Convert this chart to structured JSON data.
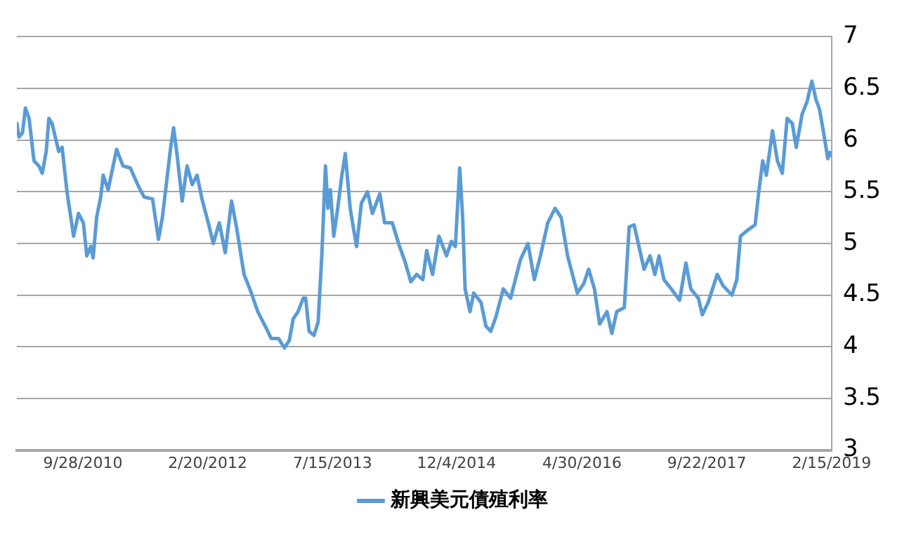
{
  "chart_data": {
    "type": "line",
    "legend": "bottom",
    "grid": "y",
    "marker": "none",
    "line_style": "solid",
    "xlim": [
      "2010-01-01",
      "2019-02-15"
    ],
    "xticks": [
      {
        "value": "2010-09-28",
        "label": "9/28/2010"
      },
      {
        "value": "2012-02-20",
        "label": "2/20/2012"
      },
      {
        "value": "2013-07-15",
        "label": "7/15/2013"
      },
      {
        "value": "2014-12-04",
        "label": "12/4/2014"
      },
      {
        "value": "2016-04-30",
        "label": "4/30/2016"
      },
      {
        "value": "2017-09-22",
        "label": "9/22/2017"
      },
      {
        "value": "2019-02-15",
        "label": "2/15/2019"
      }
    ],
    "ylim": [
      3,
      7
    ],
    "yticks": [
      3,
      3.5,
      4,
      4.5,
      5,
      5.5,
      6,
      6.5,
      7
    ],
    "x": [
      "2010-01-01",
      "2010-01-10",
      "2010-01-24",
      "2010-02-05",
      "2010-02-20",
      "2010-03-12",
      "2010-04-01",
      "2010-04-15",
      "2010-05-01",
      "2010-05-12",
      "2010-05-25",
      "2010-06-21",
      "2010-07-05",
      "2010-07-25",
      "2010-08-21",
      "2010-09-10",
      "2010-09-30",
      "2010-10-14",
      "2010-10-30",
      "2010-11-09",
      "2010-11-23",
      "2010-12-10",
      "2010-12-20",
      "2011-01-09",
      "2011-02-13",
      "2011-03-11",
      "2011-04-10",
      "2011-05-10",
      "2011-06-05",
      "2011-07-10",
      "2011-08-03",
      "2011-08-19",
      "2011-09-22",
      "2011-10-04",
      "2011-10-19",
      "2011-11-08",
      "2011-11-28",
      "2011-12-19",
      "2012-01-08",
      "2012-01-28",
      "2012-02-27",
      "2012-03-14",
      "2012-04-08",
      "2012-05-02",
      "2012-05-28",
      "2012-06-17",
      "2012-07-18",
      "2012-08-17",
      "2012-09-12",
      "2012-10-17",
      "2012-11-06",
      "2012-12-06",
      "2012-12-30",
      "2013-01-19",
      "2013-02-04",
      "2013-02-24",
      "2013-03-17",
      "2013-03-27",
      "2013-04-10",
      "2013-04-30",
      "2013-05-17",
      "2013-06-01",
      "2013-06-16",
      "2013-06-26",
      "2013-07-06",
      "2013-07-20",
      "2013-08-05",
      "2013-08-22",
      "2013-09-05",
      "2013-09-25",
      "2013-10-21",
      "2013-11-10",
      "2013-12-05",
      "2013-12-25",
      "2014-01-24",
      "2014-02-13",
      "2014-03-16",
      "2014-04-15",
      "2014-05-05",
      "2014-05-31",
      "2014-06-24",
      "2014-07-19",
      "2014-08-04",
      "2014-08-28",
      "2014-09-23",
      "2014-10-24",
      "2014-11-13",
      "2014-11-29",
      "2014-12-17",
      "2014-12-29",
      "2015-01-08",
      "2015-01-28",
      "2015-02-12",
      "2015-03-14",
      "2015-04-03",
      "2015-04-23",
      "2015-05-14",
      "2015-06-13",
      "2015-07-13",
      "2015-08-22",
      "2015-09-22",
      "2015-10-18",
      "2015-11-12",
      "2015-12-12",
      "2016-01-11",
      "2016-02-05",
      "2016-03-02",
      "2016-03-22",
      "2016-04-11",
      "2016-05-07",
      "2016-05-27",
      "2016-06-20",
      "2016-07-11",
      "2016-08-10",
      "2016-08-30",
      "2016-09-19",
      "2016-10-20",
      "2016-11-09",
      "2016-11-29",
      "2016-12-19",
      "2017-01-09",
      "2017-02-02",
      "2017-02-22",
      "2017-03-11",
      "2017-03-31",
      "2017-04-30",
      "2017-06-03",
      "2017-06-29",
      "2017-07-19",
      "2017-08-19",
      "2017-09-04",
      "2017-09-28",
      "2017-11-04",
      "2017-11-28",
      "2018-01-03",
      "2018-01-23",
      "2018-02-07",
      "2018-03-09",
      "2018-04-08",
      "2018-04-22",
      "2018-05-09",
      "2018-05-24",
      "2018-06-18",
      "2018-07-08",
      "2018-07-28",
      "2018-08-17",
      "2018-09-07",
      "2018-09-23",
      "2018-10-17",
      "2018-11-06",
      "2018-11-26",
      "2018-12-13",
      "2018-12-27",
      "2019-01-16",
      "2019-01-30",
      "2019-02-07",
      "2019-02-15"
    ],
    "series": [
      {
        "name": "新興美元債殖利率",
        "color": "#5b9bd5",
        "values": [
          6.16,
          6.03,
          6.07,
          6.31,
          6.21,
          5.8,
          5.75,
          5.68,
          5.89,
          6.21,
          6.16,
          5.89,
          5.93,
          5.5,
          5.07,
          5.29,
          5.2,
          4.88,
          4.97,
          4.86,
          5.25,
          5.45,
          5.66,
          5.52,
          5.91,
          5.75,
          5.73,
          5.57,
          5.45,
          5.43,
          5.04,
          5.25,
          5.93,
          6.12,
          5.84,
          5.41,
          5.75,
          5.57,
          5.66,
          5.43,
          5.16,
          5.0,
          5.2,
          4.91,
          5.41,
          5.16,
          4.7,
          4.52,
          4.34,
          4.18,
          4.08,
          4.08,
          3.99,
          4.06,
          4.27,
          4.34,
          4.47,
          4.47,
          4.15,
          4.11,
          4.24,
          4.88,
          5.75,
          5.34,
          5.52,
          5.07,
          5.34,
          5.66,
          5.87,
          5.34,
          4.97,
          5.39,
          5.5,
          5.29,
          5.48,
          5.2,
          5.2,
          4.97,
          4.84,
          4.63,
          4.7,
          4.65,
          4.93,
          4.7,
          5.07,
          4.88,
          5.02,
          4.97,
          5.73,
          5.25,
          4.56,
          4.34,
          4.52,
          4.43,
          4.2,
          4.15,
          4.29,
          4.56,
          4.47,
          4.84,
          5.0,
          4.65,
          4.88,
          5.2,
          5.34,
          5.25,
          4.88,
          4.7,
          4.52,
          4.61,
          4.75,
          4.56,
          4.22,
          4.34,
          4.13,
          4.34,
          4.38,
          5.16,
          5.18,
          4.97,
          4.75,
          4.88,
          4.7,
          4.88,
          4.65,
          4.56,
          4.45,
          4.81,
          4.56,
          4.47,
          4.31,
          4.43,
          4.7,
          4.59,
          4.5,
          4.65,
          5.07,
          5.13,
          5.18,
          5.48,
          5.8,
          5.66,
          6.09,
          5.8,
          5.68,
          6.21,
          6.16,
          5.93,
          6.25,
          6.37,
          6.57,
          6.39,
          6.3,
          6.03,
          5.82,
          5.88,
          5.85
        ]
      }
    ]
  }
}
